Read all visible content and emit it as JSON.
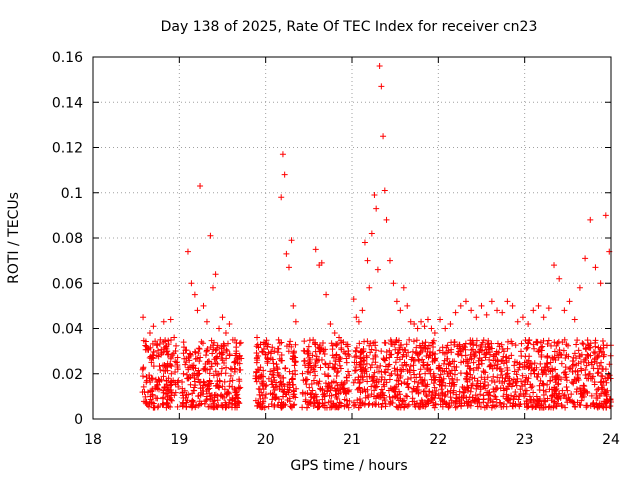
{
  "chart_data": {
    "type": "scatter",
    "title": "Day 138 of 2025, Rate Of TEC Index for receiver cn23",
    "xlabel": "GPS time / hours",
    "ylabel": "ROTI / TECUs",
    "xlim": [
      18,
      24
    ],
    "ylim": [
      0,
      0.16
    ],
    "xticks": [
      "18",
      "19",
      "20",
      "21",
      "22",
      "23",
      "24"
    ],
    "yticks": [
      "0",
      "0.02",
      "0.04",
      "0.06",
      "0.08",
      "0.1",
      "0.12",
      "0.14",
      "0.16"
    ],
    "grid": true,
    "marker": "+",
    "color": "#ff0000",
    "series": [
      {
        "name": "ROTI",
        "x": [
          18.58,
          18.62,
          18.66,
          18.7,
          18.74,
          18.78,
          18.82,
          18.86,
          18.9,
          18.94,
          18.97,
          19.05,
          19.1,
          19.14,
          19.18,
          19.21,
          19.24,
          19.28,
          19.32,
          19.36,
          19.39,
          19.42,
          19.46,
          19.5,
          19.54,
          19.58,
          19.62,
          19.66,
          19.7,
          19.9,
          19.94,
          19.98,
          20.02,
          20.06,
          20.1,
          20.15,
          20.18,
          20.2,
          20.22,
          20.24,
          20.27,
          20.3,
          20.32,
          20.35,
          20.45,
          20.5,
          20.55,
          20.58,
          20.62,
          20.65,
          20.7,
          20.75,
          20.8,
          20.85,
          20.9,
          20.95,
          21.02,
          21.05,
          21.08,
          21.12,
          21.15,
          21.18,
          21.2,
          21.23,
          21.26,
          21.28,
          21.3,
          21.32,
          21.34,
          21.36,
          21.38,
          21.4,
          21.44,
          21.48,
          21.52,
          21.56,
          21.6,
          21.64,
          21.68,
          21.72,
          21.76,
          21.8,
          21.84,
          21.88,
          21.92,
          21.96,
          22.02,
          22.08,
          22.14,
          22.2,
          22.26,
          22.32,
          22.38,
          22.44,
          22.5,
          22.56,
          22.62,
          22.68,
          22.74,
          22.8,
          22.86,
          22.92,
          22.98,
          23.04,
          23.1,
          23.16,
          23.22,
          23.28,
          23.34,
          23.4,
          23.46,
          23.52,
          23.58,
          23.64,
          23.7,
          23.76,
          23.82,
          23.88,
          23.94,
          23.98
        ],
        "y": [
          0.045,
          0.032,
          0.038,
          0.041,
          0.028,
          0.035,
          0.043,
          0.03,
          0.044,
          0.036,
          0.025,
          0.034,
          0.074,
          0.06,
          0.055,
          0.048,
          0.103,
          0.05,
          0.043,
          0.081,
          0.058,
          0.064,
          0.04,
          0.045,
          0.038,
          0.042,
          0.035,
          0.03,
          0.028,
          0.036,
          0.033,
          0.031,
          0.032,
          0.029,
          0.03,
          0.035,
          0.098,
          0.117,
          0.108,
          0.073,
          0.067,
          0.079,
          0.05,
          0.043,
          0.03,
          0.032,
          0.035,
          0.075,
          0.068,
          0.069,
          0.055,
          0.042,
          0.038,
          0.036,
          0.034,
          0.033,
          0.053,
          0.045,
          0.043,
          0.048,
          0.078,
          0.07,
          0.058,
          0.082,
          0.099,
          0.093,
          0.066,
          0.156,
          0.147,
          0.125,
          0.101,
          0.088,
          0.07,
          0.06,
          0.052,
          0.048,
          0.058,
          0.05,
          0.043,
          0.042,
          0.04,
          0.043,
          0.041,
          0.044,
          0.04,
          0.038,
          0.044,
          0.04,
          0.042,
          0.047,
          0.05,
          0.052,
          0.048,
          0.045,
          0.05,
          0.046,
          0.052,
          0.048,
          0.047,
          0.052,
          0.05,
          0.043,
          0.045,
          0.042,
          0.048,
          0.05,
          0.045,
          0.049,
          0.068,
          0.062,
          0.048,
          0.052,
          0.044,
          0.058,
          0.071,
          0.088,
          0.067,
          0.06,
          0.09,
          0.074
        ]
      }
    ],
    "dense_band": {
      "segments": [
        [
          18.57,
          18.99
        ],
        [
          19.03,
          19.72
        ],
        [
          19.88,
          20.36
        ],
        [
          20.42,
          20.97
        ],
        [
          21.02,
          21.98
        ],
        [
          22.0,
          24.0
        ]
      ],
      "y_min": 0.005,
      "y_max": 0.035
    }
  }
}
